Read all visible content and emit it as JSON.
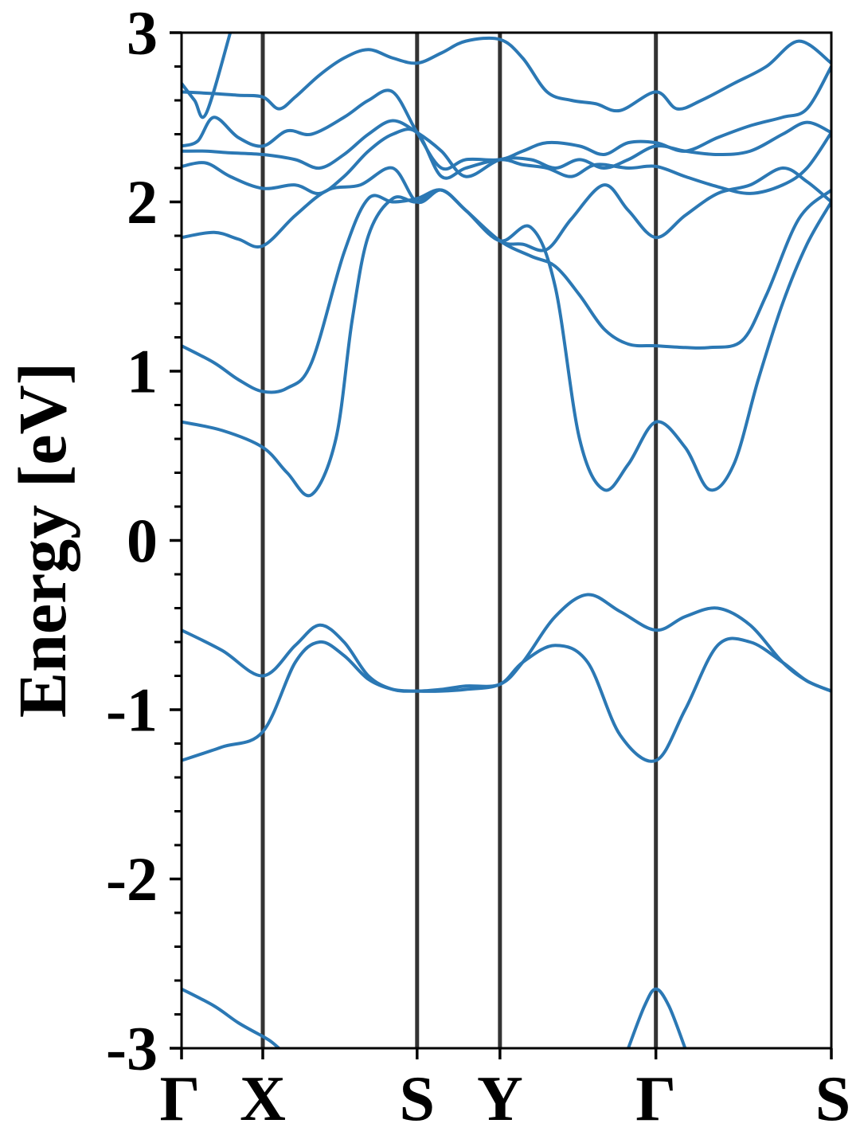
{
  "chart_data": {
    "type": "line",
    "ylabel": "Energy [eV]",
    "xlabel": "",
    "ylim": [
      -3,
      3
    ],
    "yticks": [
      -3,
      -2,
      -1,
      0,
      1,
      2,
      3
    ],
    "ytick_labels": [
      "-3",
      "-2",
      "-1",
      "0",
      "1",
      "2",
      "3"
    ],
    "minor_ytick_step": 0.2,
    "kpath_positions": [
      0,
      0.5,
      1.45,
      1.96,
      2.92,
      4.0
    ],
    "kpath_labels": [
      "Γ",
      "X",
      "S",
      "Y",
      "Γ",
      "S"
    ],
    "grid": false,
    "line_color": "#2b78b4",
    "kline_color": "#333333",
    "series": [
      {
        "x": [
          0,
          0.25,
          0.5,
          0.7,
          0.85,
          1.0,
          1.15,
          1.3,
          1.45,
          1.6,
          1.75,
          1.96,
          2.1,
          2.3,
          2.5,
          2.7,
          2.92,
          3.1,
          3.3,
          3.5,
          3.7,
          3.85,
          4.0
        ],
        "y": [
          -1.3,
          -1.22,
          -1.13,
          -0.72,
          -0.6,
          -0.68,
          -0.82,
          -0.88,
          -0.89,
          -0.89,
          -0.88,
          -0.85,
          -0.72,
          -0.62,
          -0.72,
          -1.15,
          -1.3,
          -1.0,
          -0.62,
          -0.6,
          -0.72,
          -0.83,
          -0.89
        ]
      },
      {
        "x": [
          0,
          0.25,
          0.5,
          0.7,
          0.85,
          1.0,
          1.15,
          1.3,
          1.45,
          1.6,
          1.75,
          1.96,
          2.1,
          2.3,
          2.5,
          2.7,
          2.92,
          3.1,
          3.3,
          3.5,
          3.7,
          3.85,
          4.0
        ],
        "y": [
          -0.53,
          -0.65,
          -0.8,
          -0.62,
          -0.5,
          -0.6,
          -0.8,
          -0.88,
          -0.89,
          -0.88,
          -0.86,
          -0.85,
          -0.72,
          -0.45,
          -0.32,
          -0.42,
          -0.53,
          -0.45,
          -0.4,
          -0.5,
          -0.72,
          -0.83,
          -0.89
        ]
      },
      {
        "x": [
          0,
          0.25,
          0.5,
          0.65,
          0.8,
          0.95,
          1.05,
          1.15,
          1.3,
          1.45,
          1.6,
          1.75,
          1.96,
          2.15,
          2.3,
          2.45,
          2.6,
          2.75,
          2.92,
          3.1,
          3.25,
          3.4,
          3.55,
          3.7,
          3.85,
          4.0
        ],
        "y": [
          0.7,
          0.65,
          0.55,
          0.4,
          0.27,
          0.6,
          1.3,
          1.8,
          2.02,
          2.0,
          2.07,
          1.95,
          1.77,
          1.85,
          1.5,
          0.6,
          0.3,
          0.45,
          0.7,
          0.55,
          0.3,
          0.45,
          0.95,
          1.4,
          1.75,
          2.0
        ]
      },
      {
        "x": [
          0,
          0.2,
          0.35,
          0.5,
          0.65,
          0.8,
          1.0,
          1.15,
          1.3,
          1.45,
          1.6,
          1.75,
          1.96,
          2.15,
          2.3,
          2.45,
          2.6,
          2.75,
          2.92,
          3.1,
          3.25,
          3.45,
          3.6,
          3.8,
          4.0
        ],
        "y": [
          1.15,
          1.05,
          0.95,
          0.88,
          0.9,
          1.05,
          1.7,
          2.02,
          2.0,
          2.02,
          2.07,
          1.95,
          1.77,
          1.68,
          1.62,
          1.45,
          1.25,
          1.16,
          1.15,
          1.14,
          1.14,
          1.18,
          1.45,
          1.9,
          2.07
        ]
      },
      {
        "x": [
          0,
          0.2,
          0.35,
          0.5,
          0.7,
          0.9,
          1.1,
          1.3,
          1.45,
          1.6,
          1.75,
          1.96,
          2.1,
          2.25,
          2.4,
          2.6,
          2.75,
          2.92,
          3.1,
          3.3,
          3.5,
          3.7,
          3.85,
          4.0
        ],
        "y": [
          1.79,
          1.82,
          1.78,
          1.74,
          1.92,
          2.07,
          2.1,
          2.2,
          2.0,
          2.07,
          1.95,
          1.77,
          1.75,
          1.72,
          1.9,
          2.1,
          1.95,
          1.79,
          1.92,
          2.05,
          2.1,
          2.2,
          2.12,
          2.0
        ]
      },
      {
        "x": [
          0,
          0.15,
          0.3,
          0.5,
          0.7,
          0.85,
          1.0,
          1.15,
          1.3,
          1.45,
          1.6,
          1.75,
          1.96,
          2.1,
          2.25,
          2.4,
          2.55,
          2.75,
          2.92,
          3.1,
          3.3,
          3.5,
          3.7,
          3.85,
          4.0
        ],
        "y": [
          2.21,
          2.23,
          2.15,
          2.08,
          2.1,
          2.05,
          2.15,
          2.3,
          2.4,
          2.41,
          2.15,
          2.2,
          2.25,
          2.22,
          2.2,
          2.15,
          2.22,
          2.2,
          2.21,
          2.15,
          2.09,
          2.05,
          2.1,
          2.2,
          2.41
        ]
      },
      {
        "x": [
          0,
          0.15,
          0.3,
          0.5,
          0.7,
          0.85,
          1.0,
          1.15,
          1.3,
          1.45,
          1.6,
          1.75,
          1.96,
          2.15,
          2.3,
          2.45,
          2.6,
          2.75,
          2.92,
          3.1,
          3.3,
          3.5,
          3.7,
          3.85,
          4.0
        ],
        "y": [
          2.3,
          2.3,
          2.29,
          2.28,
          2.25,
          2.2,
          2.28,
          2.4,
          2.48,
          2.41,
          2.3,
          2.15,
          2.25,
          2.25,
          2.2,
          2.25,
          2.2,
          2.25,
          2.33,
          2.3,
          2.28,
          2.3,
          2.4,
          2.47,
          2.41
        ]
      },
      {
        "x": [
          0,
          0.1,
          0.2,
          0.35,
          0.5,
          0.65,
          0.8,
          1.0,
          1.15,
          1.3,
          1.45,
          1.6,
          1.75,
          1.96,
          2.1,
          2.25,
          2.45,
          2.6,
          2.75,
          2.92,
          3.1,
          3.3,
          3.5,
          3.7,
          3.85,
          4.0
        ],
        "y": [
          2.33,
          2.36,
          2.5,
          2.38,
          2.33,
          2.42,
          2.4,
          2.5,
          2.6,
          2.65,
          2.41,
          2.2,
          2.25,
          2.25,
          2.3,
          2.35,
          2.33,
          2.28,
          2.35,
          2.35,
          2.3,
          2.38,
          2.45,
          2.5,
          2.55,
          2.8
        ]
      },
      {
        "x": [
          0,
          0.2,
          0.35,
          0.5,
          0.6,
          0.7,
          0.85,
          1.0,
          1.15,
          1.3,
          1.45,
          1.6,
          1.75,
          1.96,
          2.1,
          2.25,
          2.4,
          2.55,
          2.7,
          2.92,
          3.05,
          3.2,
          3.4,
          3.6,
          3.8,
          4.0
        ],
        "y": [
          2.65,
          2.64,
          2.63,
          2.62,
          2.55,
          2.62,
          2.75,
          2.85,
          2.9,
          2.85,
          2.82,
          2.88,
          2.95,
          2.96,
          2.85,
          2.65,
          2.6,
          2.58,
          2.54,
          2.65,
          2.55,
          2.6,
          2.7,
          2.8,
          2.95,
          2.82
        ]
      },
      {
        "x": [
          0,
          0.08,
          0.15,
          0.3
        ],
        "y": [
          2.7,
          2.6,
          2.52,
          3.0
        ]
      },
      {
        "x": [
          0,
          0.2,
          0.35,
          0.5
        ],
        "y": [
          -2.65,
          -2.75,
          -2.85,
          -2.93
        ]
      },
      {
        "x": [
          0.5,
          0.55,
          0.6
        ],
        "y": [
          -2.93,
          -2.96,
          -3.0
        ]
      },
      {
        "x": [
          2.75,
          2.85,
          2.92,
          3.0,
          3.1
        ],
        "y": [
          -3.0,
          -2.75,
          -2.65,
          -2.75,
          -3.0
        ]
      }
    ]
  }
}
